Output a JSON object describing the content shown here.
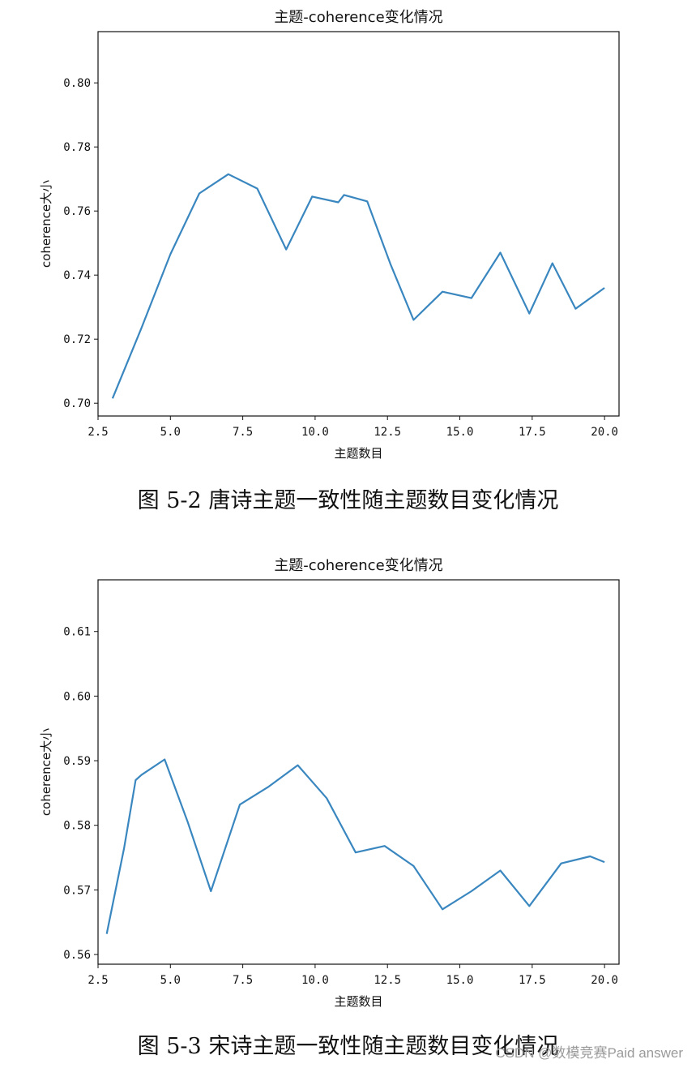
{
  "chart_data": [
    {
      "type": "line",
      "title": "主题-coherence变化情况",
      "xlabel": "主题数目",
      "ylabel": "coherence大小",
      "xlim": [
        2.5,
        20.5
      ],
      "ylim": [
        0.696,
        0.816
      ],
      "xticks": [
        "2.5",
        "5.0",
        "7.5",
        "10.0",
        "12.5",
        "15.0",
        "17.5",
        "20.0"
      ],
      "yticks": [
        "0.70",
        "0.72",
        "0.74",
        "0.76",
        "0.78",
        "0.80"
      ],
      "grid": false,
      "color": "#3a87c0",
      "series": [
        {
          "x": [
            3,
            4,
            5,
            6,
            7,
            8,
            9,
            9.9,
            10.8,
            11,
            11.8,
            12.6,
            13.4,
            14.4,
            15.4,
            16.4,
            17.4,
            18.2,
            19,
            20
          ],
          "y": [
            0.7015,
            0.7235,
            0.7465,
            0.7655,
            0.7715,
            0.767,
            0.748,
            0.7645,
            0.7627,
            0.765,
            0.763,
            0.7435,
            0.726,
            0.7348,
            0.7328,
            0.747,
            0.728,
            0.7437,
            0.7295,
            0.736
          ]
        }
      ]
    },
    {
      "type": "line",
      "title": "主题-coherence变化情况",
      "xlabel": "主题数目",
      "ylabel": "coherence大小",
      "xlim": [
        2.5,
        20.5
      ],
      "ylim": [
        0.5585,
        0.618
      ],
      "xticks": [
        "2.5",
        "5.0",
        "7.5",
        "10.0",
        "12.5",
        "15.0",
        "17.5",
        "20.0"
      ],
      "yticks": [
        "0.56",
        "0.57",
        "0.58",
        "0.59",
        "0.60",
        "0.61"
      ],
      "grid": false,
      "color": "#3a87c0",
      "series": [
        {
          "x": [
            2.8,
            3.4,
            3.8,
            4,
            4.8,
            5.6,
            6.4,
            7.4,
            8.4,
            9.4,
            10.4,
            11.4,
            12.4,
            13.4,
            14.4,
            15.4,
            16.4,
            17.4,
            18.5,
            19.5,
            20
          ],
          "y": [
            0.5632,
            0.5765,
            0.587,
            0.5878,
            0.5902,
            0.5805,
            0.5698,
            0.5832,
            0.586,
            0.5893,
            0.5842,
            0.5758,
            0.5768,
            0.5737,
            0.567,
            0.5698,
            0.573,
            0.5675,
            0.5741,
            0.5752,
            0.5743
          ]
        }
      ]
    }
  ],
  "captions": [
    "图 5-2   唐诗主题一致性随主题数目变化情况",
    "图 5-3   宋诗主题一致性随主题数目变化情况"
  ],
  "watermark": "CSDN @数模竞赛Paid answer"
}
